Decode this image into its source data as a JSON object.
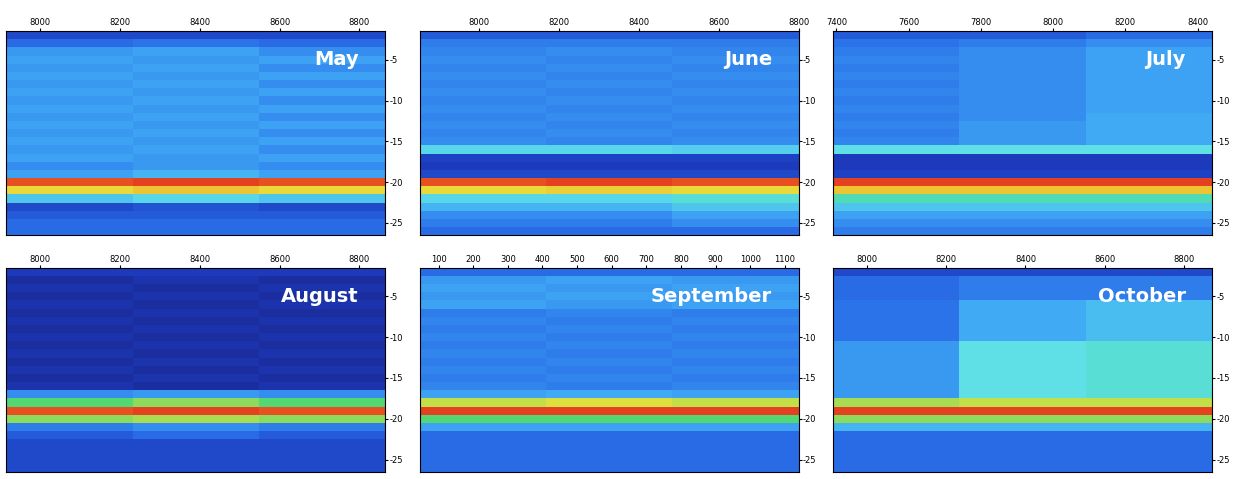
{
  "chart_data": [
    {
      "type": "heatmap",
      "title": "May",
      "xlim": [
        7915,
        8865
      ],
      "xticks": [
        8000,
        8200,
        8400,
        8600,
        8800
      ],
      "ylim": [
        -26.5,
        -1.5
      ],
      "yticks": [
        -5,
        -10,
        -15,
        -20,
        -25
      ],
      "zlim": [
        -80,
        -30
      ],
      "x_bins": [
        7915,
        8232,
        8548,
        8865
      ],
      "depth_bins": [
        -1.5,
        -2.5,
        -3.5,
        -4.5,
        -5.5,
        -6.5,
        -7.5,
        -8.5,
        -9.5,
        -10.5,
        -11.5,
        -12.5,
        -13.5,
        -14.5,
        -15.5,
        -16.5,
        -17.5,
        -18.5,
        -19.5,
        -20.5,
        -21.5,
        -22.5,
        -23.5,
        -24.5,
        -25.5,
        -26.5
      ],
      "cells": [
        [
          -72,
          -72,
          -72
        ],
        [
          -68,
          -67,
          -68
        ],
        [
          -63,
          -62,
          -64
        ],
        [
          -62,
          -63,
          -62
        ],
        [
          -63,
          -62,
          -64
        ],
        [
          -62,
          -63,
          -62
        ],
        [
          -63,
          -62,
          -64
        ],
        [
          -62,
          -63,
          -62
        ],
        [
          -63,
          -62,
          -64
        ],
        [
          -62,
          -63,
          -62
        ],
        [
          -63,
          -62,
          -64
        ],
        [
          -62,
          -63,
          -62
        ],
        [
          -63,
          -62,
          -64
        ],
        [
          -62,
          -63,
          -62
        ],
        [
          -63,
          -62,
          -64
        ],
        [
          -62,
          -63,
          -62
        ],
        [
          -64,
          -63,
          -64
        ],
        [
          -62,
          -60,
          -62
        ],
        [
          -32,
          -31,
          -32
        ],
        [
          -42,
          -40,
          -42
        ],
        [
          -58,
          -56,
          -58
        ],
        [
          -72,
          -71,
          -72
        ],
        [
          -70,
          -70,
          -70
        ],
        [
          -68,
          -68,
          -68
        ],
        [
          -68,
          -68,
          -68
        ]
      ]
    },
    {
      "type": "heatmap",
      "title": "June",
      "xlim": [
        7850,
        8800
      ],
      "xticks": [
        8000,
        8200,
        8400,
        8600,
        8800
      ],
      "ylim": [
        -26.5,
        -1.5
      ],
      "yticks": [
        -5,
        -10,
        -15,
        -20,
        -25
      ],
      "zlim": [
        -80,
        -30
      ],
      "x_bins": [
        7850,
        8167,
        8483,
        8800
      ],
      "depth_bins": [
        -1.5,
        -2.5,
        -3.5,
        -4.5,
        -5.5,
        -6.5,
        -7.5,
        -8.5,
        -9.5,
        -10.5,
        -11.5,
        -12.5,
        -13.5,
        -14.5,
        -15.5,
        -16.5,
        -17.5,
        -18.5,
        -19.5,
        -20.5,
        -21.5,
        -22.5,
        -23.5,
        -24.5,
        -25.5,
        -26.5
      ],
      "cells": [
        [
          -70,
          -70,
          -70
        ],
        [
          -66,
          -66,
          -66
        ],
        [
          -65,
          -64,
          -65
        ],
        [
          -64,
          -65,
          -64
        ],
        [
          -65,
          -64,
          -65
        ],
        [
          -64,
          -65,
          -64
        ],
        [
          -65,
          -64,
          -65
        ],
        [
          -64,
          -65,
          -64
        ],
        [
          -65,
          -64,
          -65
        ],
        [
          -64,
          -65,
          -64
        ],
        [
          -65,
          -64,
          -65
        ],
        [
          -64,
          -65,
          -64
        ],
        [
          -65,
          -64,
          -65
        ],
        [
          -64,
          -65,
          -64
        ],
        [
          -56,
          -56,
          -57
        ],
        [
          -73,
          -73,
          -73
        ],
        [
          -74,
          -74,
          -74
        ],
        [
          -72,
          -72,
          -72
        ],
        [
          -32,
          -31,
          -32
        ],
        [
          -42,
          -41,
          -42
        ],
        [
          -56,
          -56,
          -54
        ],
        [
          -60,
          -60,
          -58
        ],
        [
          -64,
          -64,
          -62
        ],
        [
          -66,
          -66,
          -64
        ],
        [
          -68,
          -68,
          -68
        ]
      ]
    },
    {
      "type": "heatmap",
      "title": "July",
      "xlim": [
        7390,
        8440
      ],
      "xticks": [
        7400,
        7600,
        7800,
        8000,
        8200,
        8400
      ],
      "ylim": [
        -26.5,
        -1.5
      ],
      "yticks": [
        -5,
        -10,
        -15,
        -20,
        -25
      ],
      "zlim": [
        -80,
        -30
      ],
      "x_bins": [
        7390,
        7740,
        8090,
        8440
      ],
      "depth_bins": [
        -1.5,
        -2.5,
        -3.5,
        -4.5,
        -5.5,
        -6.5,
        -7.5,
        -8.5,
        -9.5,
        -10.5,
        -11.5,
        -12.5,
        -13.5,
        -14.5,
        -15.5,
        -16.5,
        -17.5,
        -18.5,
        -19.5,
        -20.5,
        -21.5,
        -22.5,
        -23.5,
        -24.5,
        -25.5,
        -26.5
      ],
      "cells": [
        [
          -70,
          -70,
          -68
        ],
        [
          -67,
          -66,
          -64
        ],
        [
          -66,
          -64,
          -62
        ],
        [
          -65,
          -64,
          -62
        ],
        [
          -66,
          -64,
          -62
        ],
        [
          -65,
          -64,
          -62
        ],
        [
          -66,
          -64,
          -62
        ],
        [
          -65,
          -64,
          -62
        ],
        [
          -66,
          -64,
          -62
        ],
        [
          -65,
          -64,
          -62
        ],
        [
          -66,
          -64,
          -61
        ],
        [
          -65,
          -63,
          -61
        ],
        [
          -66,
          -63,
          -61
        ],
        [
          -65,
          -63,
          -61
        ],
        [
          -55,
          -55,
          -55
        ],
        [
          -74,
          -74,
          -74
        ],
        [
          -74,
          -74,
          -74
        ],
        [
          -73,
          -73,
          -73
        ],
        [
          -31,
          -31,
          -31
        ],
        [
          -40,
          -40,
          -40
        ],
        [
          -52,
          -52,
          -52
        ],
        [
          -58,
          -58,
          -58
        ],
        [
          -62,
          -62,
          -62
        ],
        [
          -64,
          -64,
          -64
        ],
        [
          -66,
          -66,
          -66
        ]
      ]
    },
    {
      "type": "heatmap",
      "title": "August",
      "xlim": [
        7915,
        8865
      ],
      "xticks": [
        8000,
        8200,
        8400,
        8600,
        8800
      ],
      "ylim": [
        -26.5,
        -1.5
      ],
      "yticks": [
        -5,
        -10,
        -15,
        -20,
        -25
      ],
      "zlim": [
        -80,
        -30
      ],
      "x_bins": [
        7915,
        8232,
        8548,
        8865
      ],
      "depth_bins": [
        -1.5,
        -2.5,
        -3.5,
        -4.5,
        -5.5,
        -6.5,
        -7.5,
        -8.5,
        -9.5,
        -10.5,
        -11.5,
        -12.5,
        -13.5,
        -14.5,
        -15.5,
        -16.5,
        -17.5,
        -18.5,
        -19.5,
        -20.5,
        -21.5,
        -22.5,
        -23.5,
        -24.5,
        -25.5,
        -26.5
      ],
      "cells": [
        [
          -74,
          -74,
          -74
        ],
        [
          -76,
          -75,
          -76
        ],
        [
          -75,
          -76,
          -75
        ],
        [
          -76,
          -75,
          -76
        ],
        [
          -75,
          -76,
          -75
        ],
        [
          -76,
          -75,
          -76
        ],
        [
          -75,
          -76,
          -75
        ],
        [
          -76,
          -75,
          -76
        ],
        [
          -75,
          -76,
          -75
        ],
        [
          -76,
          -75,
          -76
        ],
        [
          -75,
          -76,
          -75
        ],
        [
          -76,
          -75,
          -76
        ],
        [
          -75,
          -76,
          -75
        ],
        [
          -76,
          -75,
          -76
        ],
        [
          -75,
          -76,
          -75
        ],
        [
          -64,
          -63,
          -64
        ],
        [
          -48,
          -46,
          -48
        ],
        [
          -32,
          -31,
          -32
        ],
        [
          -46,
          -45,
          -46
        ],
        [
          -66,
          -64,
          -66
        ],
        [
          -70,
          -68,
          -70
        ],
        [
          -72,
          -72,
          -72
        ],
        [
          -72,
          -72,
          -72
        ],
        [
          -72,
          -72,
          -72
        ],
        [
          -72,
          -72,
          -72
        ]
      ]
    },
    {
      "type": "heatmap",
      "title": "September",
      "xlim": [
        45,
        1140
      ],
      "xticks": [
        100,
        200,
        300,
        400,
        500,
        600,
        700,
        800,
        900,
        1000,
        1100
      ],
      "ylim": [
        -26.5,
        -1.5
      ],
      "yticks": [
        -5,
        -10,
        -15,
        -20,
        -25
      ],
      "zlim": [
        -80,
        -30
      ],
      "x_bins": [
        45,
        410,
        775,
        1140
      ],
      "depth_bins": [
        -1.5,
        -2.5,
        -3.5,
        -4.5,
        -5.5,
        -6.5,
        -7.5,
        -8.5,
        -9.5,
        -10.5,
        -11.5,
        -12.5,
        -13.5,
        -14.5,
        -15.5,
        -16.5,
        -17.5,
        -18.5,
        -19.5,
        -20.5,
        -21.5,
        -22.5,
        -23.5,
        -24.5,
        -25.5,
        -26.5
      ],
      "cells": [
        [
          -68,
          -68,
          -68
        ],
        [
          -63,
          -62,
          -63
        ],
        [
          -62,
          -63,
          -62
        ],
        [
          -63,
          -62,
          -63
        ],
        [
          -62,
          -63,
          -62
        ],
        [
          -66,
          -65,
          -66
        ],
        [
          -65,
          -66,
          -65
        ],
        [
          -66,
          -65,
          -66
        ],
        [
          -65,
          -66,
          -65
        ],
        [
          -66,
          -65,
          -66
        ],
        [
          -65,
          -66,
          -65
        ],
        [
          -66,
          -65,
          -66
        ],
        [
          -65,
          -66,
          -65
        ],
        [
          -66,
          -65,
          -66
        ],
        [
          -65,
          -66,
          -65
        ],
        [
          -62,
          -61,
          -62
        ],
        [
          -44,
          -43,
          -44
        ],
        [
          -31,
          -31,
          -31
        ],
        [
          -48,
          -48,
          -48
        ],
        [
          -62,
          -62,
          -62
        ],
        [
          -68,
          -68,
          -68
        ],
        [
          -68,
          -68,
          -68
        ],
        [
          -68,
          -68,
          -68
        ],
        [
          -68,
          -68,
          -68
        ],
        [
          -68,
          -68,
          -68
        ]
      ]
    },
    {
      "type": "heatmap",
      "title": "October",
      "xlim": [
        7915,
        8870
      ],
      "xticks": [
        8000,
        8200,
        8400,
        8600,
        8800
      ],
      "ylim": [
        -26.5,
        -1.5
      ],
      "yticks": [
        -5,
        -10,
        -15,
        -20,
        -25
      ],
      "zlim": [
        -80,
        -30
      ],
      "x_bins": [
        7915,
        8233,
        8552,
        8870
      ],
      "depth_bins": [
        -1.5,
        -2.5,
        -3.5,
        -4.5,
        -5.5,
        -6.5,
        -7.5,
        -8.5,
        -9.5,
        -10.5,
        -11.5,
        -12.5,
        -13.5,
        -14.5,
        -15.5,
        -16.5,
        -17.5,
        -18.5,
        -19.5,
        -20.5,
        -21.5,
        -22.5,
        -23.5,
        -24.5,
        -25.5,
        -26.5
      ],
      "cells": [
        [
          -72,
          -72,
          -72
        ],
        [
          -68,
          -66,
          -66
        ],
        [
          -68,
          -66,
          -66
        ],
        [
          -68,
          -66,
          -66
        ],
        [
          -67,
          -61,
          -59
        ],
        [
          -67,
          -61,
          -59
        ],
        [
          -67,
          -61,
          -59
        ],
        [
          -67,
          -61,
          -59
        ],
        [
          -67,
          -61,
          -59
        ],
        [
          -63,
          -55,
          -54
        ],
        [
          -63,
          -55,
          -54
        ],
        [
          -63,
          -55,
          -54
        ],
        [
          -63,
          -55,
          -54
        ],
        [
          -63,
          -55,
          -54
        ],
        [
          -63,
          -55,
          -54
        ],
        [
          -63,
          -55,
          -54
        ],
        [
          -45,
          -44,
          -44
        ],
        [
          -31,
          -31,
          -31
        ],
        [
          -46,
          -46,
          -46
        ],
        [
          -60,
          -60,
          -60
        ],
        [
          -68,
          -68,
          -68
        ],
        [
          -68,
          -68,
          -68
        ],
        [
          -68,
          -68,
          -68
        ],
        [
          -68,
          -68,
          -68
        ],
        [
          -68,
          -68,
          -68
        ]
      ]
    }
  ]
}
